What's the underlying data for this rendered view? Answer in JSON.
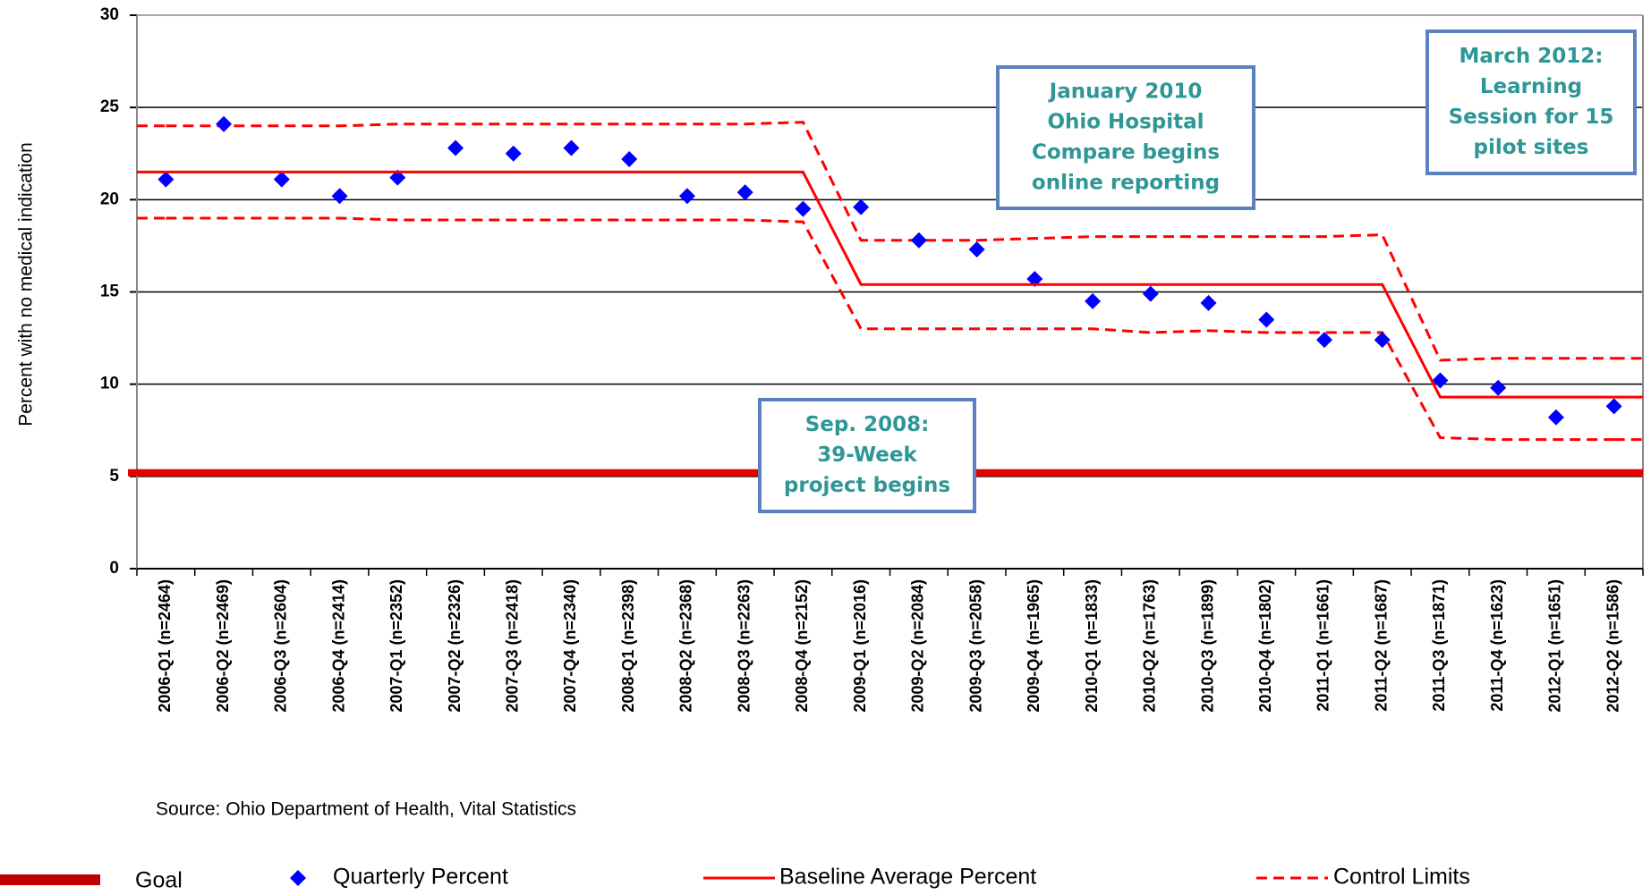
{
  "chart_data": {
    "type": "line",
    "y_label": "Percent with no medical indication",
    "source": "Source: Ohio Department of Health, Vital Statistics",
    "categories": [
      "2006-Q1 (n=2464)",
      "2006-Q2 (n=2469)",
      "2006-Q3 (n=2604)",
      "2006-Q4 (n=2414)",
      "2007-Q1 (n=2352)",
      "2007-Q2 (n=2326)",
      "2007-Q3 (n=2418)",
      "2007-Q4 (n=2340)",
      "2008-Q1 (n=2398)",
      "2008-Q2 (n=2368)",
      "2008-Q3 (n=2263)",
      "2008-Q4 (n=2152)",
      "2009-Q1 (n=2016)",
      "2009-Q2 (n=2084)",
      "2009-Q3 (n=2058)",
      "2009-Q4 (n=1965)",
      "2010-Q1 (n=1833)",
      "2010-Q2 (n=1763)",
      "2010-Q3 (n=1899)",
      "2010-Q4 (n=1802)",
      "2011-Q1 (n=1661)",
      "2011-Q2 (n=1687)",
      "2011-Q3 (n=1871)",
      "2011-Q4 (n=1623)",
      "2012-Q1 (n=1651)",
      "2012-Q2 (n=1586)"
    ],
    "goal": {
      "name": "Goal",
      "value": 5.2,
      "color": "#e60000"
    },
    "series": [
      {
        "name": "Quarterly Percent",
        "color": "#0000ff",
        "style": "markers",
        "values": [
          21.1,
          24.1,
          21.1,
          20.2,
          21.2,
          22.8,
          22.5,
          22.8,
          22.2,
          20.2,
          20.4,
          19.5,
          19.6,
          17.8,
          17.3,
          15.7,
          14.5,
          14.9,
          14.4,
          13.5,
          12.4,
          12.4,
          10.2,
          9.8,
          8.2,
          8.8
        ]
      },
      {
        "name": "Baseline Average Percent",
        "color": "#ff0000",
        "style": "solid",
        "values": [
          21.5,
          21.5,
          21.5,
          21.5,
          21.5,
          21.5,
          21.5,
          21.5,
          21.5,
          21.5,
          21.5,
          21.5,
          15.4,
          15.4,
          15.4,
          15.4,
          15.4,
          15.4,
          15.4,
          15.4,
          15.4,
          15.4,
          9.3,
          9.3,
          9.3,
          9.3
        ]
      }
    ],
    "control_limits": {
      "name": "Control Limits",
      "color": "#ff0000",
      "style": "dashed",
      "upper": [
        24.0,
        24.0,
        24.0,
        24.0,
        24.1,
        24.1,
        24.1,
        24.1,
        24.1,
        24.1,
        24.1,
        24.2,
        17.8,
        17.8,
        17.8,
        17.9,
        18.0,
        18.0,
        18.0,
        18.0,
        18.0,
        18.1,
        11.3,
        11.4,
        11.4,
        11.4
      ],
      "lower": [
        19.0,
        19.0,
        19.0,
        19.0,
        18.9,
        18.9,
        18.9,
        18.9,
        18.9,
        18.9,
        18.9,
        18.8,
        13.0,
        13.0,
        13.0,
        13.0,
        13.0,
        12.8,
        12.9,
        12.8,
        12.8,
        12.8,
        7.1,
        7.0,
        7.0,
        7.0
      ]
    },
    "annotations": [
      {
        "lines": [
          "January 2010",
          "Ohio Hospital",
          "Compare  begins",
          "online reporting"
        ]
      },
      {
        "lines": [
          "March 2012:",
          "Learning",
          "Session for 15",
          "pilot sites"
        ]
      },
      {
        "lines": [
          "Sep. 2008:",
          "39-Week",
          "project begins"
        ]
      }
    ],
    "ylim": [
      0,
      30
    ],
    "yticks": [
      0,
      5,
      10,
      15,
      20,
      25,
      30
    ],
    "grid": true
  }
}
